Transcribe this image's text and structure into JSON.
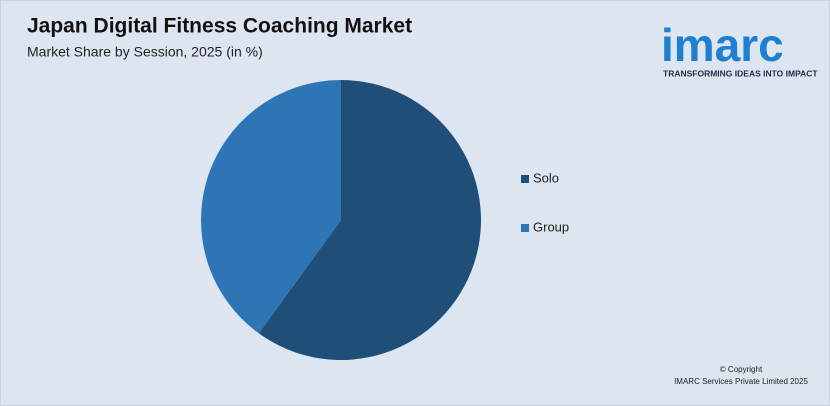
{
  "chart_data": {
    "type": "pie",
    "title": "Japan Digital Fitness Coaching Market",
    "subtitle": "Market Share by Session, 2025 (in %)",
    "categories": [
      "Solo",
      "Group"
    ],
    "values": [
      60,
      40
    ],
    "colors": [
      "#1f4e79",
      "#2e75b6"
    ],
    "legend": "right"
  },
  "brand": {
    "name": "imarc",
    "tagline": "TRANSFORMING IDEAS INTO IMPACT"
  },
  "footer": {
    "copyright": "© Copyright",
    "company": "IMARC Services Private Limited 2025"
  }
}
